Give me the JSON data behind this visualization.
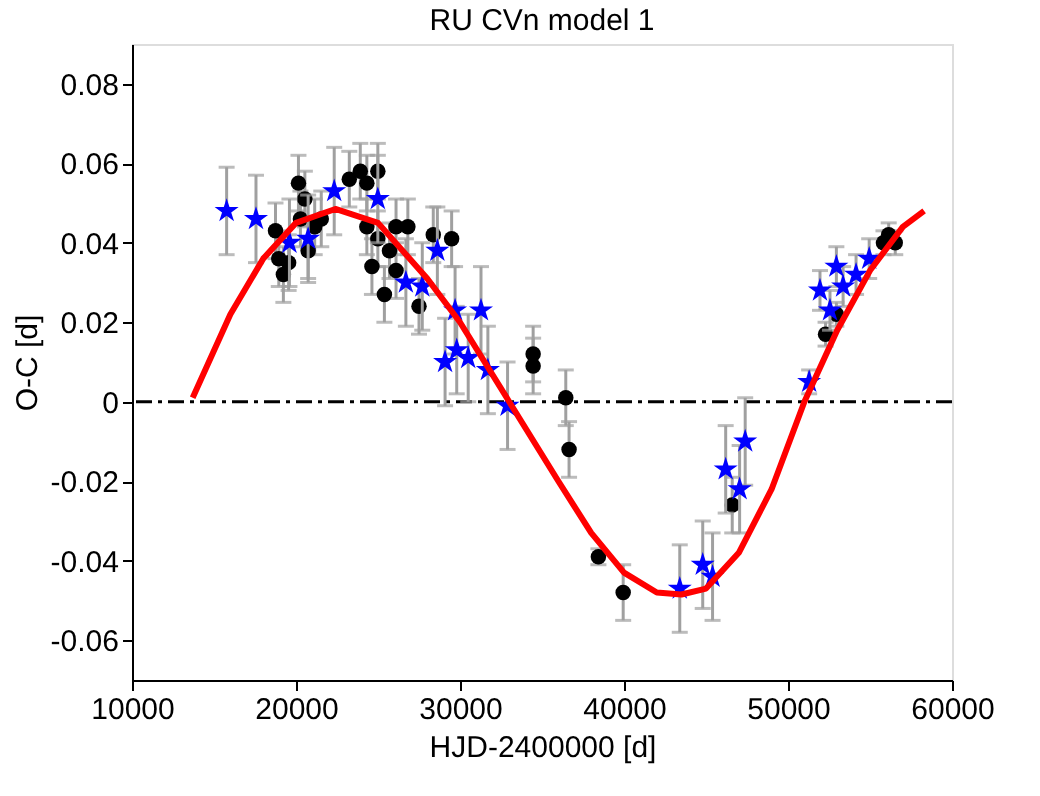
{
  "chart_data": {
    "type": "scatter",
    "title": "RU CVn model 1",
    "xlabel": "HJD-2400000 [d]",
    "ylabel": "O-C [d]",
    "xlim": [
      10000,
      60000
    ],
    "xticks": [
      10000,
      20000,
      30000,
      40000,
      50000,
      60000
    ],
    "ylim": [
      -0.07,
      0.09
    ],
    "yticks": [
      -0.06,
      -0.04,
      -0.02,
      0,
      0.02,
      0.04,
      0.06,
      0.08
    ],
    "grid": false,
    "legend": false,
    "ref_lines": [
      {
        "axis": "y",
        "value": 0,
        "color": "#000000",
        "line_style": "dashdot"
      }
    ],
    "series": [
      {
        "type": "scatter",
        "marker": "circle",
        "color": "#000000",
        "x": [
          18750,
          18950,
          19230,
          19550,
          20150,
          20270,
          20540,
          20740,
          21140,
          21540,
          23250,
          23920,
          24320,
          24990,
          24320,
          24630,
          24990,
          25390,
          25700,
          26100,
          26100,
          26820,
          27500,
          28370,
          29490,
          34460,
          34460,
          36450,
          36650,
          38440,
          39950,
          46600,
          52290,
          52950,
          56140,
          56540,
          55820
        ],
        "values": [
          0.043,
          0.036,
          0.032,
          0.035,
          0.055,
          0.046,
          0.051,
          0.038,
          0.044,
          0.046,
          0.056,
          0.058,
          0.055,
          0.058,
          0.044,
          0.034,
          0.041,
          0.027,
          0.038,
          0.044,
          0.033,
          0.044,
          0.024,
          0.042,
          0.041,
          0.012,
          0.009,
          0.001,
          -0.012,
          -0.039,
          -0.048,
          -0.026,
          0.017,
          0.022,
          0.042,
          0.04,
          0.04
        ],
        "errors": [
          0.007,
          0.007,
          0.007,
          0.007,
          0.007,
          0.007,
          0.007,
          0.007,
          0.007,
          0.007,
          0.007,
          0.007,
          0.007,
          0.007,
          0.007,
          0.007,
          0.007,
          0.007,
          0.007,
          0.007,
          0.007,
          0.007,
          0.007,
          0.007,
          0.007,
          0.007,
          0.007,
          0.007,
          0.007,
          0.002,
          0.007,
          0.007,
          0.003,
          0.003,
          0.003,
          0.003,
          0.003
        ]
      },
      {
        "type": "scatter",
        "marker": "star",
        "color": "#0000ff",
        "x": [
          15770,
          17560,
          19600,
          20740,
          22330,
          24990,
          26700,
          27700,
          28620,
          29090,
          29700,
          29800,
          30500,
          31280,
          31700,
          32900,
          43400,
          44800,
          45400,
          46200,
          47050,
          47390,
          51290,
          51950,
          52560,
          52950,
          53360,
          54150,
          54950
        ],
        "values": [
          0.048,
          0.046,
          0.04,
          0.041,
          0.053,
          0.051,
          0.03,
          0.029,
          0.038,
          0.01,
          0.023,
          0.013,
          0.011,
          0.023,
          0.008,
          -0.001,
          -0.047,
          -0.041,
          -0.044,
          -0.017,
          -0.022,
          -0.01,
          0.005,
          0.028,
          0.023,
          0.034,
          0.029,
          0.032,
          0.036
        ],
        "errors": [
          0.011,
          0.011,
          0.011,
          0.011,
          0.011,
          0.011,
          0.011,
          0.011,
          0.011,
          0.011,
          0.011,
          0.011,
          0.011,
          0.011,
          0.011,
          0.011,
          0.011,
          0.011,
          0.011,
          0.011,
          0.011,
          0.011,
          0.003,
          0.005,
          0.005,
          0.005,
          0.005,
          0.005,
          0.005
        ]
      },
      {
        "type": "line",
        "color": "#ff0000",
        "marker": "none",
        "line_style": "solid",
        "x": [
          13700,
          16000,
          18000,
          20000,
          22400,
          25000,
          28000,
          30000,
          33000,
          36000,
          38000,
          40000,
          42000,
          43500,
          45000,
          47000,
          49000,
          51000,
          53000,
          55000,
          57000,
          58300
        ],
        "values": [
          0.001,
          0.022,
          0.036,
          0.045,
          0.0485,
          0.045,
          0.031,
          0.02,
          0.0,
          -0.02,
          -0.033,
          -0.043,
          -0.048,
          -0.0485,
          -0.047,
          -0.038,
          -0.022,
          0.0,
          0.018,
          0.033,
          0.044,
          0.048
        ]
      }
    ]
  }
}
